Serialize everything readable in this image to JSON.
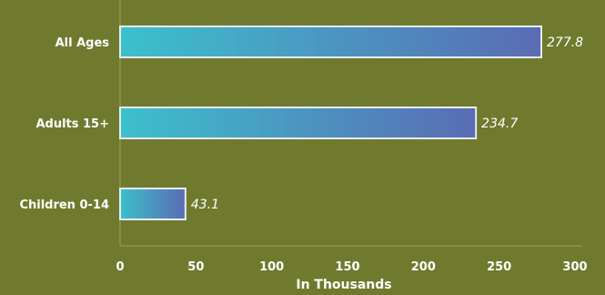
{
  "chart_data": {
    "type": "bar",
    "orientation": "horizontal",
    "categories": [
      "All Ages",
      "Adults 15+",
      "Children 0-14"
    ],
    "values": [
      277.8,
      234.7,
      43.1
    ],
    "value_labels": [
      "277.8",
      "234.7",
      "43.1"
    ],
    "title": "",
    "xlabel": "In Thousands",
    "ylabel": "",
    "xlim": [
      0,
      300
    ],
    "xticks": [
      "0",
      "50",
      "100",
      "150",
      "200",
      "250",
      "300"
    ],
    "grid": false,
    "colors": {
      "background": "#707a2e",
      "bar_start": "#3cc0cc",
      "bar_end": "#5a6cb4",
      "bar_border": "#e8eef0",
      "axis": "#9aa262",
      "text": "#ffffff"
    }
  }
}
